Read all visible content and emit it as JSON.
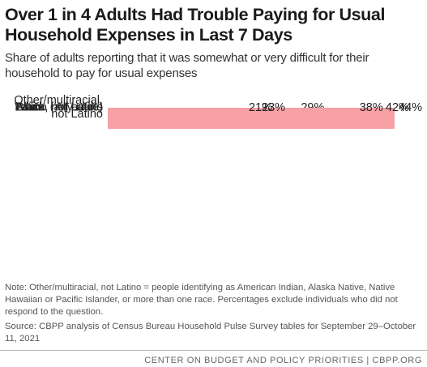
{
  "chart_data": {
    "type": "bar",
    "orientation": "horizontal",
    "title": "Over 1 in 4 Adults Had Trouble Paying for Usual Household Expenses in Last 7 Days",
    "subtitle": "Share of adults reporting that it was somewhat or very difficult for their household to pay for usual expenses",
    "categories": [
      "All adults",
      "Black, not Latino",
      "Other/multiracial, not Latino",
      "Latino (any race)",
      "White, not Latino",
      "Asian, not Latino"
    ],
    "values": [
      29,
      44,
      42,
      38,
      23,
      21
    ],
    "value_labels": [
      "29%",
      "44%",
      "42%",
      "38%",
      "23%",
      "21%"
    ],
    "colors": [
      "#f0626b",
      "#f7a1a4",
      "#f7a1a4",
      "#f7a1a4",
      "#f7a1a4",
      "#f7a1a4"
    ],
    "note": "Note: Other/multiracial, not Latino = people identifying as American Indian, Alaska Native, Native Hawaiian or Pacific Islander, or more than one race. Percentages exclude individuals who did not respond to the question.",
    "source": "Source: CBPP analysis of Census Bureau Household Pulse Survey tables for September 29–October 11, 2021",
    "footer": "CENTER ON BUDGET AND POLICY PRIORITIES | CBPP.ORG"
  }
}
